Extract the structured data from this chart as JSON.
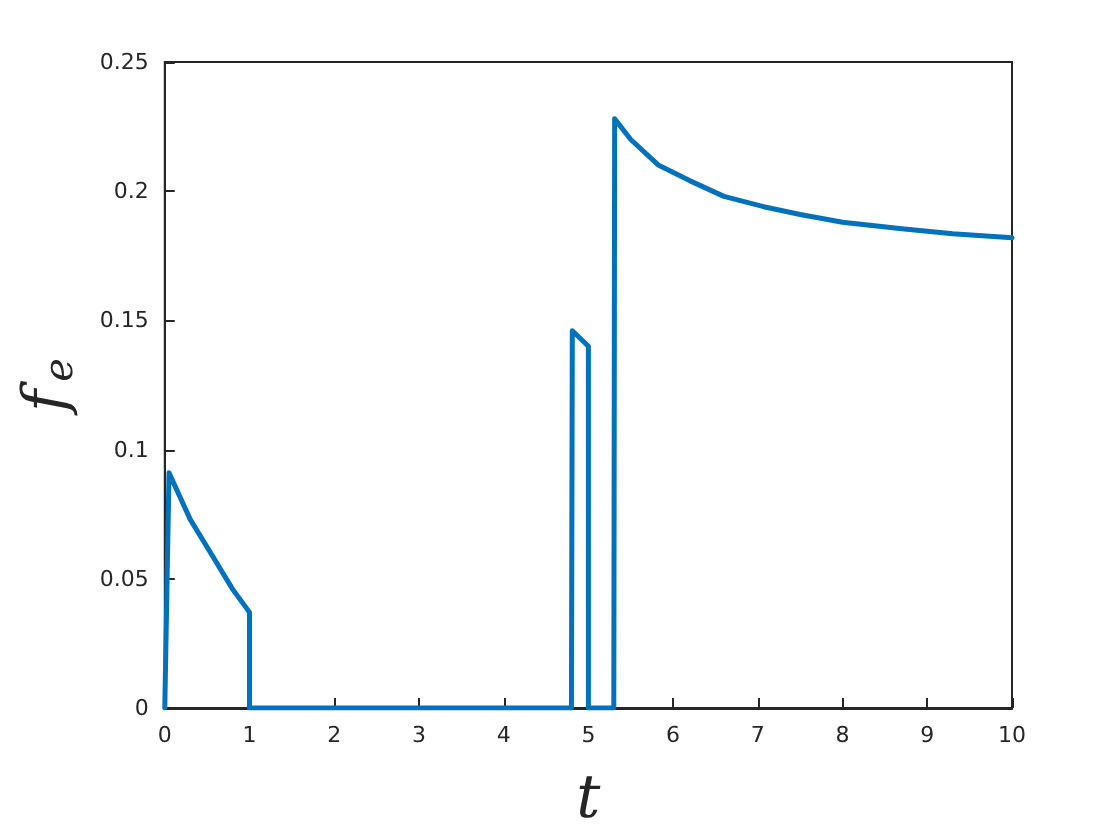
{
  "chart_data": {
    "type": "line",
    "xlabel": "t",
    "ylabel": "f$_{e}$",
    "series": [
      {
        "color": "#0072bd",
        "x": [
          0,
          0.05,
          0.3,
          0.56,
          0.8,
          1.0,
          1.0,
          4.8,
          4.81,
          5.0,
          5.0,
          5.3,
          5.31,
          5.5,
          5.83,
          6.2,
          6.6,
          7.07,
          7.5,
          8,
          8.7,
          9.3,
          10
        ],
        "values": [
          0,
          0.091,
          0.073,
          0.059,
          0.046,
          0.037,
          0,
          0,
          0.146,
          0.14,
          0,
          0,
          0.228,
          0.22,
          0.21,
          0.204,
          0.198,
          0.194,
          0.191,
          0.188,
          0.1855,
          0.1835,
          0.182
        ]
      }
    ],
    "xlim": [
      0,
      10
    ],
    "xticks": [
      0,
      1,
      2,
      3,
      4,
      5,
      6,
      7,
      8,
      9,
      10
    ],
    "ylim": [
      0,
      0.25
    ],
    "yticks": [
      0,
      0.05,
      0.1,
      0.15,
      0.2,
      0.25
    ],
    "grid": false,
    "marker": "none",
    "line_style": "solid"
  }
}
